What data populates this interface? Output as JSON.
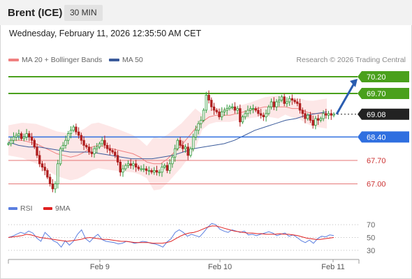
{
  "header": {
    "instrument": "Brent (ICE)",
    "timeframe": "30 MIN",
    "timestamp": "Wednesday, February 11, 2026 12:35:50 AM CET"
  },
  "legend": {
    "ma20_label": "MA 20 + Bollinger Bands",
    "ma50_label": "MA 50",
    "credit": "Research © 2026 Trading Central",
    "rsi_label": "RSI",
    "ma9_label": "9MA"
  },
  "colors": {
    "resistance": "#4aa01c",
    "current": "#222222",
    "support_blue": "#2f6fe0",
    "support_red": "#e57373",
    "ma20": "#f08080",
    "ma50": "#3b5b9b",
    "bollinger_fill": "#fde3e3",
    "rsi": "#5b7fe0",
    "ma9": "#e02020",
    "candle_up": "#2e9a3a",
    "candle_down": "#b02020",
    "arrow": "#2a5db0"
  },
  "chart_data": [
    {
      "type": "candlestick",
      "title": "Brent (ICE)",
      "x_labels": [
        "Feb 9",
        "Feb 10",
        "Feb 11"
      ],
      "ylim": [
        66.7,
        70.45
      ],
      "levels": [
        {
          "value": 70.2,
          "label": "70.20",
          "kind": "resistance"
        },
        {
          "value": 69.7,
          "label": "69.70",
          "kind": "resistance"
        },
        {
          "value": 69.08,
          "label": "69.08",
          "kind": "current"
        },
        {
          "value": 68.4,
          "label": "68.40",
          "kind": "support_blue"
        },
        {
          "value": 67.7,
          "label": "67.70",
          "kind": "support_red"
        },
        {
          "value": 67.0,
          "label": "67.00",
          "kind": "support_red"
        }
      ],
      "series": [
        {
          "name": "Price",
          "close": [
            68.2,
            68.3,
            68.4,
            68.45,
            68.5,
            68.35,
            68.4,
            68.5,
            68.4,
            68.3,
            68.1,
            67.85,
            67.6,
            67.5,
            67.4,
            67.2,
            67.0,
            66.85,
            67.0,
            67.6,
            68.05,
            68.15,
            68.3,
            68.5,
            68.6,
            68.7,
            68.55,
            68.45,
            68.3,
            68.15,
            68.1,
            67.95,
            67.9,
            68.05,
            68.1,
            68.2,
            68.3,
            68.15,
            68.05,
            68.0,
            67.95,
            67.85,
            67.65,
            67.35,
            67.45,
            67.55,
            67.6,
            67.55,
            67.6,
            67.5,
            67.45,
            67.45,
            67.45,
            67.4,
            67.4,
            67.35,
            67.4,
            67.35,
            67.35,
            67.5,
            67.55,
            67.4,
            67.6,
            67.8,
            68.05,
            68.3,
            68.15,
            68.05,
            68.1,
            67.85,
            68.05,
            68.4,
            68.6,
            68.8,
            68.9,
            69.2,
            69.65,
            69.5,
            69.3,
            69.2,
            69.15,
            69.0,
            69.15,
            69.2,
            69.25,
            69.3,
            69.3,
            69.2,
            69.25,
            68.85,
            69.0,
            69.1,
            69.2,
            69.25,
            69.25,
            69.2,
            69.1,
            69.05,
            69.0,
            69.1,
            69.3,
            69.45,
            69.3,
            69.45,
            69.5,
            69.6,
            69.4,
            69.45,
            69.55,
            69.5,
            69.45,
            69.4,
            69.2,
            69.1,
            68.95,
            69.05,
            68.9,
            68.75,
            68.95,
            68.9,
            68.95,
            69.1,
            69.05,
            69.1,
            69.05,
            69.08
          ]
        },
        {
          "name": "MA 20",
          "values": [
            68.3,
            68.3,
            68.3,
            68.25,
            68.2,
            68.1,
            68.0,
            67.9,
            67.85,
            67.8,
            67.85,
            67.95,
            68.1,
            68.15,
            68.1,
            68.05,
            68.0,
            67.95,
            67.9,
            67.8,
            67.65,
            67.6,
            67.6,
            67.75,
            67.95,
            68.15,
            68.4,
            68.65,
            68.85,
            69.0,
            69.05,
            69.05,
            69.05,
            69.1,
            69.15,
            69.2,
            69.25,
            69.3,
            69.3,
            69.3,
            69.3,
            69.25,
            69.25,
            69.15,
            69.1,
            69.1,
            69.1
          ]
        },
        {
          "name": "MA 50",
          "values": [
            68.25,
            68.15,
            68.1,
            68.1,
            68.05,
            68.0,
            67.95,
            67.95,
            67.95,
            67.9,
            67.85,
            67.8,
            67.75,
            67.75,
            67.75,
            67.8,
            67.85,
            67.95,
            68.05,
            68.1,
            68.15,
            68.2,
            68.3,
            68.45,
            68.6,
            68.7,
            68.8,
            68.9,
            68.95,
            69.05,
            69.1,
            69.15
          ]
        }
      ],
      "projection": {
        "from": 69.08,
        "to": 70.2
      }
    },
    {
      "type": "line",
      "title": "RSI",
      "ylim": [
        20,
        80
      ],
      "y_ticks": [
        70,
        50,
        30
      ],
      "series": [
        {
          "name": "RSI",
          "values": [
            50,
            52,
            55,
            58,
            56,
            60,
            57,
            49,
            44,
            58,
            52,
            45,
            42,
            35,
            45,
            38,
            44,
            55,
            62,
            48,
            43,
            50,
            55,
            47,
            44,
            43,
            42,
            40,
            41,
            44,
            43,
            41,
            42,
            44,
            43,
            41,
            40,
            38,
            35,
            43,
            48,
            58,
            62,
            58,
            52,
            55,
            53,
            51,
            58,
            66,
            72,
            70,
            63,
            60,
            58,
            62,
            60,
            58,
            60,
            54,
            55,
            53,
            55,
            57,
            59,
            57,
            53,
            55,
            57,
            52,
            54,
            50,
            45,
            42,
            46,
            41,
            48,
            52,
            51,
            54,
            53
          ]
        },
        {
          "name": "9MA",
          "values": [
            50,
            51,
            52,
            53,
            55,
            54,
            52,
            50,
            49,
            48,
            47,
            46,
            45,
            44,
            45,
            46,
            47,
            49,
            50,
            49,
            48,
            47,
            47,
            46,
            45,
            44,
            44,
            43,
            42,
            42,
            42,
            42,
            41,
            41,
            41,
            42,
            44,
            48,
            52,
            55,
            57,
            58,
            60,
            63,
            66,
            68,
            68,
            66,
            64,
            62,
            60,
            59,
            58,
            57,
            57,
            56,
            56,
            55,
            55,
            55,
            56,
            55,
            55,
            54,
            53,
            51,
            49,
            48,
            47,
            47,
            48,
            49,
            50
          ]
        }
      ]
    }
  ]
}
